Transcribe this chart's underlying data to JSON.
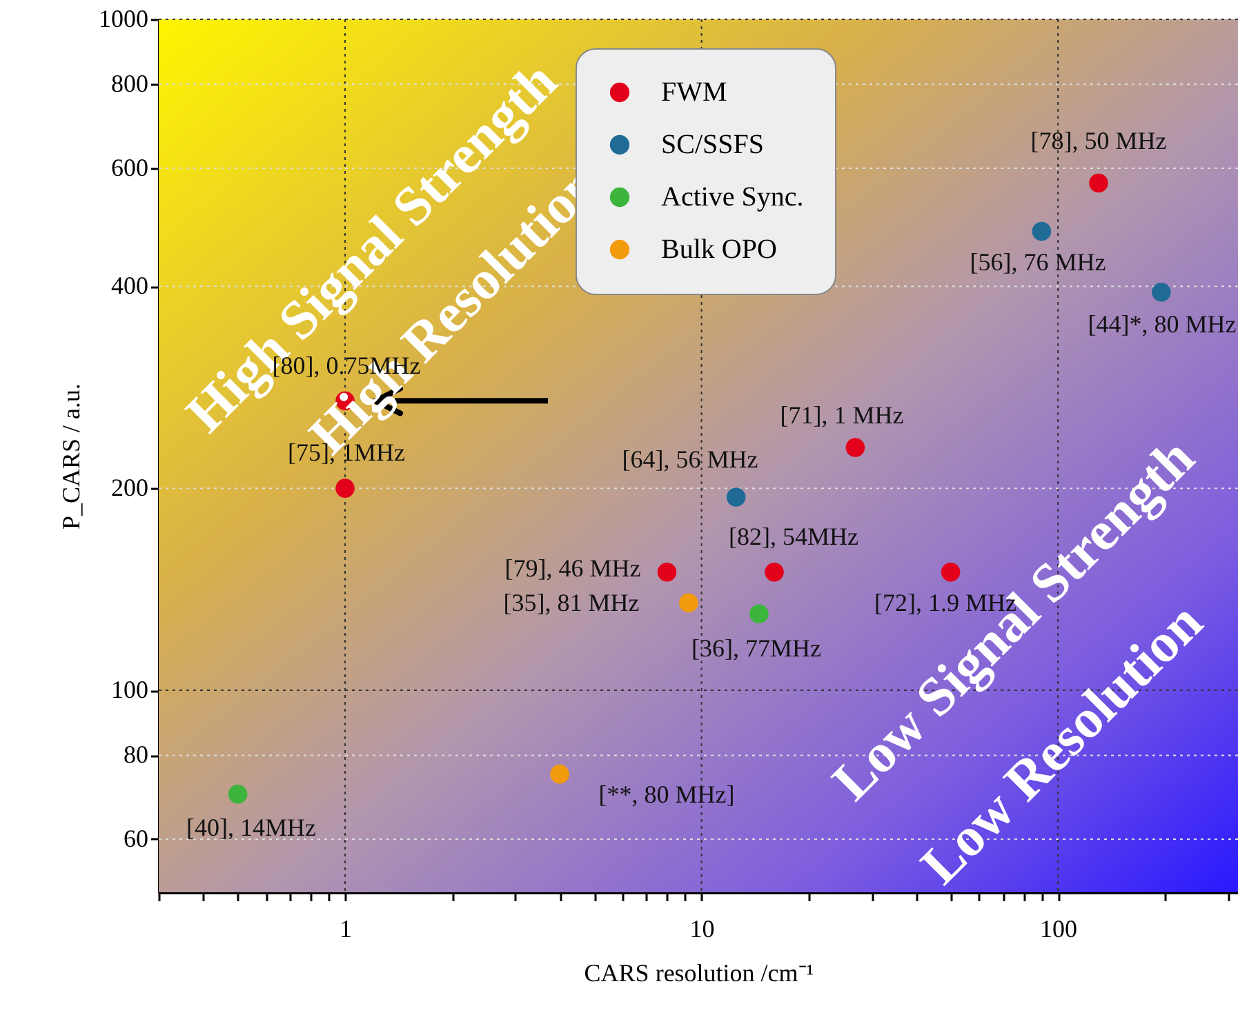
{
  "chart_data": {
    "type": "scatter",
    "xlabel": "CARS resolution /cm⁻¹",
    "ylabel": "P_CARS / a.u.",
    "log": "xy",
    "grid": true,
    "legend": "top",
    "marker": "circle",
    "xlim": [
      0.3,
      320
    ],
    "ylim": [
      50,
      1000
    ],
    "xticks": [
      {
        "value": 0.3,
        "label": null
      },
      {
        "value": 0.4,
        "label": null
      },
      {
        "value": 0.5,
        "label": null
      },
      {
        "value": 0.6,
        "label": null
      },
      {
        "value": 0.7,
        "label": null
      },
      {
        "value": 0.8,
        "label": null
      },
      {
        "value": 0.9,
        "label": null
      },
      1,
      {
        "value": 2,
        "label": null
      },
      {
        "value": 3,
        "label": null
      },
      {
        "value": 4,
        "label": null
      },
      {
        "value": 5,
        "label": null
      },
      {
        "value": 6,
        "label": null
      },
      {
        "value": 7,
        "label": null
      },
      {
        "value": 8,
        "label": null
      },
      {
        "value": 9,
        "label": null
      },
      10,
      {
        "value": 20,
        "label": null
      },
      {
        "value": 30,
        "label": null
      },
      {
        "value": 40,
        "label": null
      },
      {
        "value": 50,
        "label": null
      },
      {
        "value": 60,
        "label": null
      },
      {
        "value": 70,
        "label": null
      },
      {
        "value": 80,
        "label": null
      },
      {
        "value": 90,
        "label": null
      },
      100,
      {
        "value": 200,
        "label": null
      },
      {
        "value": 300,
        "label": null
      }
    ],
    "yticks": [
      60,
      80,
      100,
      200,
      400,
      600,
      800,
      1000
    ],
    "series": [
      {
        "name": "FWM",
        "color": "#e2001a",
        "x": [
          1,
          1,
          8,
          16,
          27,
          50,
          130
        ],
        "values": [
          270,
          200,
          150,
          150,
          230,
          150,
          570
        ]
      },
      {
        "name": "SC/SSFS",
        "color": "#1f6b96",
        "x": [
          12.5,
          90,
          195
        ],
        "values": [
          194,
          483,
          392
        ]
      },
      {
        "name": "Active Sync.",
        "color": "#3db53d",
        "x": [
          0.5,
          14.5
        ],
        "values": [
          70,
          130
        ]
      },
      {
        "name": "Bulk OPO",
        "color": "#f29b0c",
        "x": [
          9.2,
          4
        ],
        "values": [
          135,
          75
        ]
      }
    ],
    "annotations": [
      "High Signal Strength",
      "High Resolution",
      "Low Signal Strength",
      "Low Resolution",
      "[78], 50 MHz",
      "[56], 76 MHz",
      "[44]*, 80 MHz",
      "[80], 0.75MHz",
      "[75], 1MHz",
      "[71], 1 MHz",
      "[64], 56 MHz",
      "[82], 54MHz",
      "[79], 46 MHz",
      "[35], 81 MHz",
      "[36], 77MHz",
      "[72], 1.9 MHz",
      "[40], 14MHz",
      "[**, 80 MHz]"
    ]
  }
}
